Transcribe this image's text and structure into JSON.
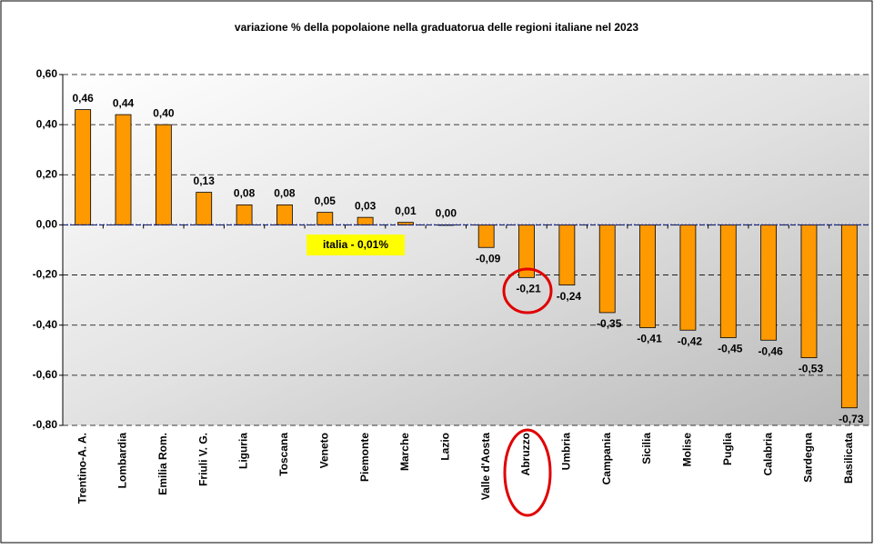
{
  "chart_data": {
    "type": "bar",
    "title": "variazione % della popolaione nella graduatorua delle regioni italiane nel 2023",
    "annotation": "italia - 0,01%",
    "categories": [
      "Trentino-A. A.",
      "Lombardia",
      "Emilia Rom.",
      "Friuli V. G.",
      "Liguria",
      "Toscana",
      "Veneto",
      "Piemonte",
      "Marche",
      "Lazio",
      "Valle d'Aosta",
      "Abruzzo",
      "Umbria",
      "Campania",
      "Sicilia",
      "Molise",
      "Puglia",
      "Calabria",
      "Sardegna",
      "Basilicata"
    ],
    "values": [
      0.46,
      0.44,
      0.4,
      0.13,
      0.08,
      0.08,
      0.05,
      0.03,
      0.01,
      0.0,
      -0.09,
      -0.21,
      -0.24,
      -0.35,
      -0.41,
      -0.42,
      -0.45,
      -0.46,
      -0.53,
      -0.73
    ],
    "value_labels": [
      "0,46",
      "0,44",
      "0,40",
      "0,13",
      "0,08",
      "0,08",
      "0,05",
      "0,03",
      "0,01",
      "0,00",
      "-0,09",
      "-0,21",
      "-0,24",
      "-0,35",
      "-0,41",
      "-0,42",
      "-0,45",
      "-0,46",
      "-0,53",
      "-0,73"
    ],
    "color": "#ff9900",
    "ylim": [
      -0.8,
      0.6
    ],
    "yticks": [
      {
        "value": -0.8,
        "label": "-0,80"
      },
      {
        "value": -0.6,
        "label": "-0,60"
      },
      {
        "value": -0.4,
        "label": "-0,40"
      },
      {
        "value": -0.2,
        "label": "-0,20"
      },
      {
        "value": 0,
        "label": "0,00"
      },
      {
        "value": 0.2,
        "label": "0,20"
      },
      {
        "value": 0.4,
        "label": "0,40"
      },
      {
        "value": 0.6,
        "label": "0,60"
      }
    ],
    "grid": true
  }
}
